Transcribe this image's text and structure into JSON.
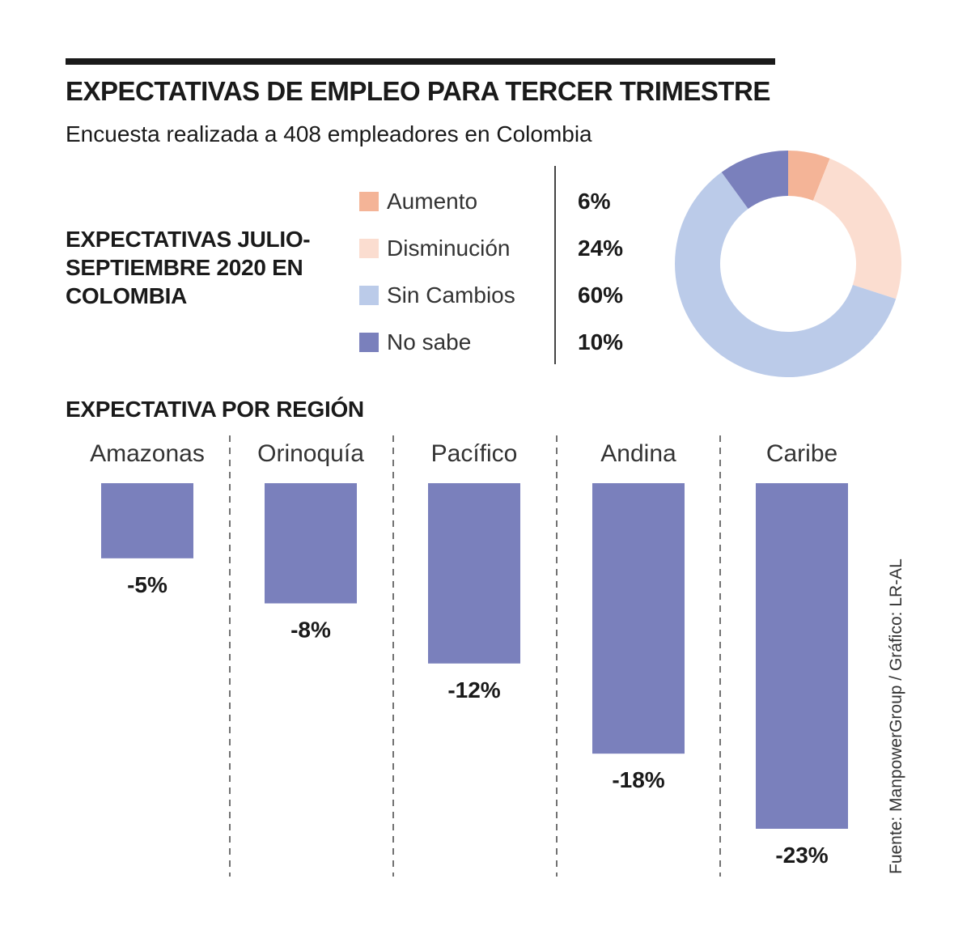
{
  "title": "EXPECTATIVAS DE EMPLEO PARA TERCER TRIMESTRE",
  "subtitle": "Encuesta realizada a 408 empleadores en Colombia",
  "source": "Fuente: ManpowerGroup / Gráfico: LR-AL",
  "colors": {
    "aumento": "#F4B497",
    "disminucion": "#FBDDD0",
    "sin_cambios": "#BBCBE9",
    "no_sabe": "#7A80BC",
    "bar": "#7A80BC",
    "text": "#1a1a1a"
  },
  "chart_data": [
    {
      "type": "pie",
      "title": "EXPECTATIVAS JULIO-SEPTIEMBRE 2020 EN COLOMBIA",
      "title_lines": [
        "EXPECTATIVAS JULIO-",
        "SEPTIEMBRE 2020 EN",
        "COLOMBIA"
      ],
      "donut": true,
      "slices": [
        {
          "label": "Aumento",
          "value": 6,
          "display": "6%",
          "color": "#F4B497"
        },
        {
          "label": "Disminución",
          "value": 24,
          "display": "24%",
          "color": "#FBDDD0"
        },
        {
          "label": "Sin Cambios",
          "value": 60,
          "display": "60%",
          "color": "#BBCBE9"
        },
        {
          "label": "No sabe",
          "value": 10,
          "display": "10%",
          "color": "#7A80BC"
        }
      ]
    },
    {
      "type": "bar",
      "title": "EXPECTATIVA POR REGIÓN",
      "categories": [
        "Amazonas",
        "Orinoquía",
        "Pacífico",
        "Andina",
        "Caribe"
      ],
      "values": [
        -5,
        -8,
        -12,
        -18,
        -23
      ],
      "labels": [
        "-5%",
        "-8%",
        "-12%",
        "-18%",
        "-23%"
      ],
      "ylim": [
        -23,
        0
      ],
      "xlabel": "",
      "ylabel": "",
      "color": "#7A80BC"
    }
  ]
}
